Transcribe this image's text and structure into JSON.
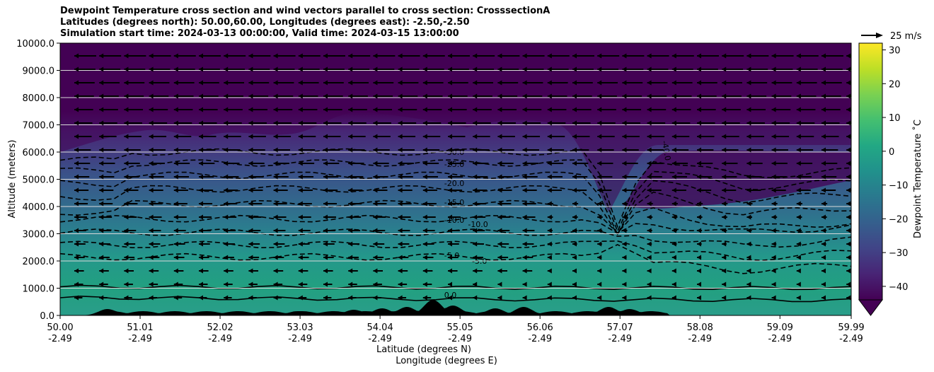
{
  "titles": {
    "line1": "Dewpoint Temperature cross section and wind vectors parallel to cross section: CrosssectionA",
    "line2": "Latitudes (degrees north): 50.00,60.00, Longitudes (degrees east): -2.50,-2.50",
    "line3": "Simulation start time: 2024-03-13 00:00:00, Valid time: 2024-03-15 13:00:00"
  },
  "chart_data": {
    "type": "heatmap",
    "title": "Dewpoint Temperature cross section and wind vectors parallel to cross section: CrosssectionA",
    "ylabel": "Altitude (meters)",
    "xlabel_lat": "Latitude (degrees N)",
    "xlabel_lon": "Longitude (degrees E)",
    "xlim": [
      50.0,
      59.99
    ],
    "ylim": [
      0,
      10000
    ],
    "x_ticks": [
      {
        "lat": "50.00",
        "lon": "-2.49",
        "value": 50.0
      },
      {
        "lat": "51.01",
        "lon": "-2.49",
        "value": 51.01
      },
      {
        "lat": "52.02",
        "lon": "-2.49",
        "value": 52.02
      },
      {
        "lat": "53.03",
        "lon": "-2.49",
        "value": 53.03
      },
      {
        "lat": "54.04",
        "lon": "-2.49",
        "value": 54.04
      },
      {
        "lat": "55.05",
        "lon": "-2.49",
        "value": 55.05
      },
      {
        "lat": "56.06",
        "lon": "-2.49",
        "value": 56.06
      },
      {
        "lat": "57.07",
        "lon": "-2.49",
        "value": 57.07
      },
      {
        "lat": "58.08",
        "lon": "-2.49",
        "value": 58.08
      },
      {
        "lat": "59.09",
        "lon": "-2.49",
        "value": 59.09
      },
      {
        "lat": "59.99",
        "lon": "-2.49",
        "value": 59.99
      }
    ],
    "y_ticks": [
      {
        "label": "0.0",
        "value": 0
      },
      {
        "label": "1000.0",
        "value": 1000
      },
      {
        "label": "2000.0",
        "value": 2000
      },
      {
        "label": "3000.0",
        "value": 3000
      },
      {
        "label": "4000.0",
        "value": 4000
      },
      {
        "label": "5000.0",
        "value": 5000
      },
      {
        "label": "6000.0",
        "value": 6000
      },
      {
        "label": "7000.0",
        "value": 7000
      },
      {
        "label": "8000.0",
        "value": 8000
      },
      {
        "label": "9000.0",
        "value": 9000
      },
      {
        "label": "10000.0",
        "value": 10000
      }
    ],
    "colorbar": {
      "label": "Dewpoint Temperature ˚C",
      "range": [
        -44,
        32
      ],
      "ticks": [
        {
          "label": "30",
          "value": 30
        },
        {
          "label": "20",
          "value": 20
        },
        {
          "label": "10",
          "value": 10
        },
        {
          "label": "0",
          "value": 0
        },
        {
          "label": "−10",
          "value": -10
        },
        {
          "label": "−20",
          "value": -20
        },
        {
          "label": "−30",
          "value": -30
        },
        {
          "label": "−40",
          "value": -40
        }
      ],
      "colors": [
        "#440154",
        "#482475",
        "#414487",
        "#355f8d",
        "#2a788e",
        "#21918c",
        "#22a884",
        "#44bf70",
        "#7ad151",
        "#bddf26",
        "#fde725"
      ]
    },
    "grid": "horizontal",
    "contour_levels": [
      {
        "label": "-30.0",
        "value": -30,
        "lat": 54.85,
        "alt": 5900
      },
      {
        "label": "-25.0",
        "value": -25,
        "lat": 54.85,
        "alt": 5450
      },
      {
        "label": "-20.0",
        "value": -20,
        "lat": 54.85,
        "alt": 4750
      },
      {
        "label": "-15.0",
        "value": -15,
        "lat": 54.85,
        "alt": 4050
      },
      {
        "label": "-10.0",
        "value": -10,
        "lat": 54.85,
        "alt": 3400
      },
      {
        "label": "-10.0",
        "value": -10,
        "lat": 55.15,
        "alt": 3250
      },
      {
        "label": "-5.0",
        "value": -5,
        "lat": 54.85,
        "alt": 2100
      },
      {
        "label": "-5.0",
        "value": -5,
        "lat": 55.2,
        "alt": 1900
      },
      {
        "label": "0.0",
        "value": 0,
        "lat": 54.85,
        "alt": 650
      },
      {
        "label": "-40.0",
        "value": -40,
        "lat": 57.6,
        "alt": 6400
      }
    ],
    "wind_reference": {
      "label": "25 m/s",
      "speed": 25
    },
    "wind_direction": "southward (toward decreasing latitude)"
  }
}
